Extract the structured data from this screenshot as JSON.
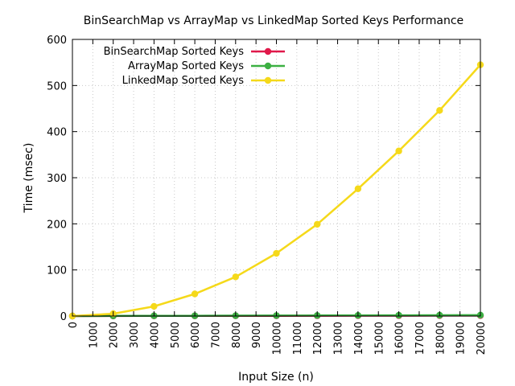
{
  "chart_data": {
    "type": "line",
    "title": "BinSearchMap vs ArrayMap vs LinkedMap Sorted Keys Performance",
    "xlabel": "Input Size (n)",
    "ylabel": "Time (msec)",
    "xlim": [
      0,
      20000
    ],
    "ylim": [
      0,
      600
    ],
    "x_ticks": [
      "0",
      "1000",
      "2000",
      "3000",
      "4000",
      "5000",
      "6000",
      "7000",
      "8000",
      "9000",
      "10000",
      "11000",
      "12000",
      "13000",
      "14000",
      "15000",
      "16000",
      "17000",
      "18000",
      "19000",
      "20000"
    ],
    "y_ticks": [
      "0",
      "100",
      "200",
      "300",
      "400",
      "500",
      "600"
    ],
    "grid": true,
    "legend_position": "top-left",
    "x": [
      0,
      2000,
      4000,
      6000,
      8000,
      10000,
      12000,
      14000,
      16000,
      18000,
      20000
    ],
    "series": [
      {
        "name": "BinSearchMap Sorted Keys",
        "color": "#e0194a",
        "values": [
          0,
          0.2,
          0.3,
          0.4,
          0.5,
          0.6,
          0.7,
          0.8,
          0.9,
          1.0,
          1.1
        ]
      },
      {
        "name": "ArrayMap Sorted Keys",
        "color": "#3cb043",
        "values": [
          0,
          0.3,
          0.5,
          0.6,
          0.8,
          1.0,
          1.2,
          1.4,
          1.6,
          1.8,
          2.0
        ]
      },
      {
        "name": "LinkedMap Sorted Keys",
        "color": "#f5d91a",
        "values": [
          0,
          5,
          21,
          48,
          85,
          136,
          199,
          276,
          358,
          446,
          545
        ]
      }
    ]
  }
}
